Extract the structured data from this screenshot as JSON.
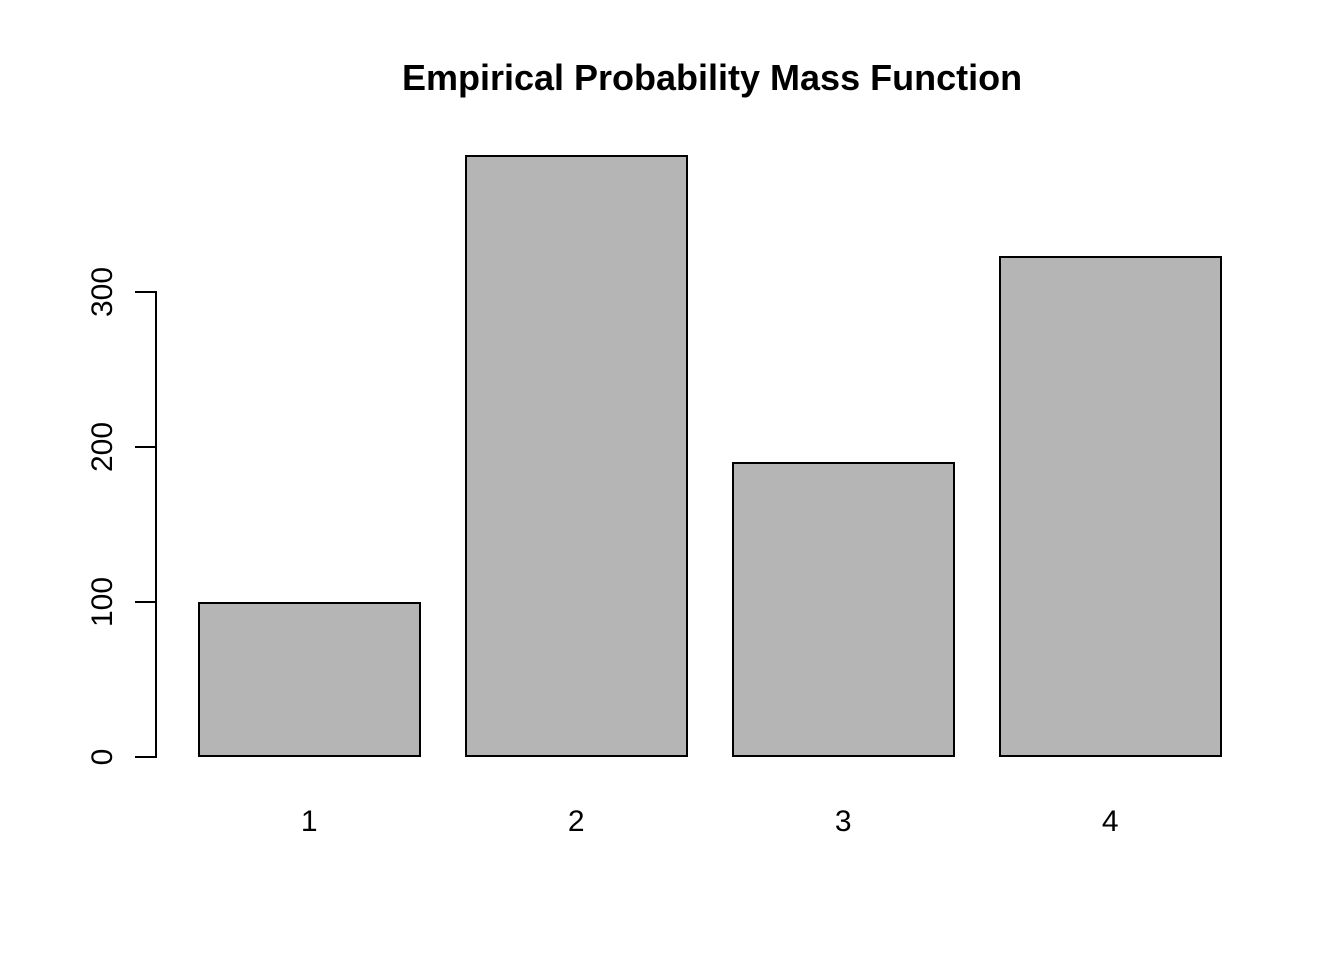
{
  "chart_data": {
    "type": "bar",
    "title": "Empirical Probability Mass Function",
    "categories": [
      "1",
      "2",
      "3",
      "4"
    ],
    "values": [
      100,
      388,
      190,
      323
    ],
    "xlabel": "",
    "ylabel": "",
    "y_ticks": [
      0,
      100,
      200,
      300
    ],
    "ylim": [
      0,
      388
    ],
    "grid": false,
    "legend": false,
    "colors": {
      "bar_fill": "#b5b5b5",
      "bar_border": "#000000",
      "axis": "#000000",
      "background": "#ffffff",
      "text": "#000000"
    }
  }
}
